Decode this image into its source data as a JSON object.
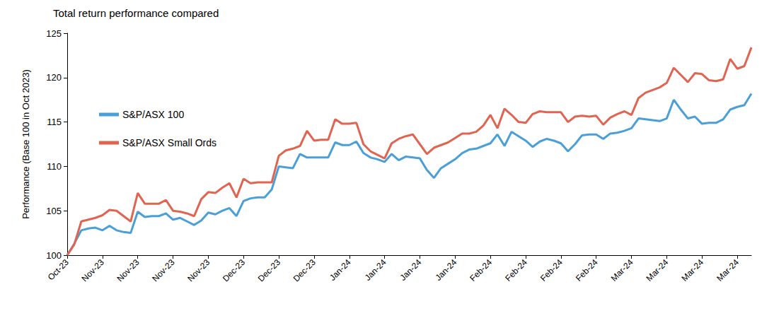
{
  "chart_data": {
    "type": "line",
    "title": "Total return performance compared",
    "y_label": "Performance (Base 100 in Oct 2023)",
    "categories": [
      "Oct-23",
      null,
      null,
      null,
      null,
      "Nov-23",
      null,
      null,
      null,
      null,
      "Nov-23",
      null,
      null,
      null,
      null,
      "Nov-23",
      null,
      null,
      null,
      null,
      "Nov-23",
      null,
      null,
      null,
      null,
      "Dec-23",
      null,
      null,
      null,
      null,
      "Dec-23",
      null,
      null,
      null,
      null,
      "Dec-23",
      null,
      null,
      null,
      null,
      "Jan-24",
      null,
      null,
      null,
      null,
      "Jan-24",
      null,
      null,
      null,
      null,
      "Jan-24",
      null,
      null,
      null,
      null,
      "Jan-24",
      null,
      null,
      null,
      null,
      "Feb-24",
      null,
      null,
      null,
      null,
      "Feb-24",
      null,
      null,
      null,
      null,
      "Feb-24",
      null,
      null,
      null,
      null,
      "Feb-24",
      null,
      null,
      null,
      null,
      "Mar-24",
      null,
      null,
      null,
      null,
      "Mar-24",
      null,
      null,
      null,
      null,
      "Mar-24",
      null,
      null,
      null,
      null,
      "Mar-24",
      null,
      null
    ],
    "series": [
      {
        "name": "S&P/ASX 100",
        "color": "#4a9fd8",
        "values": [
          100.0,
          101.3,
          102.8,
          103.0,
          103.1,
          102.8,
          103.3,
          102.8,
          102.6,
          102.5,
          104.9,
          104.3,
          104.4,
          104.4,
          104.7,
          104.0,
          104.2,
          103.8,
          103.4,
          103.9,
          104.8,
          104.6,
          105.0,
          105.3,
          104.4,
          106.1,
          106.4,
          106.5,
          106.5,
          107.4,
          110.0,
          109.9,
          109.8,
          111.4,
          111.0,
          111.0,
          111.0,
          111.0,
          112.7,
          112.4,
          112.4,
          112.8,
          111.5,
          111.0,
          110.8,
          110.5,
          111.4,
          110.7,
          111.1,
          111.0,
          110.9,
          109.6,
          108.7,
          109.8,
          110.3,
          110.8,
          111.5,
          111.9,
          112.0,
          112.3,
          112.6,
          113.6,
          112.3,
          113.9,
          113.4,
          112.9,
          112.2,
          112.8,
          113.1,
          112.9,
          112.6,
          111.7,
          112.5,
          113.5,
          113.6,
          113.6,
          113.1,
          113.7,
          113.8,
          114.0,
          114.3,
          115.4,
          115.3,
          115.2,
          115.1,
          115.4,
          117.5,
          116.4,
          115.4,
          115.6,
          114.8,
          114.9,
          114.9,
          115.3,
          116.4,
          116.7,
          116.9,
          118.2
        ]
      },
      {
        "name": "S&P/ASX Small Ords",
        "color": "#e06450",
        "values": [
          100.0,
          101.2,
          103.8,
          104.0,
          104.2,
          104.5,
          105.1,
          105.0,
          104.4,
          103.8,
          107.0,
          105.8,
          105.8,
          105.8,
          106.2,
          105.0,
          104.9,
          104.7,
          104.4,
          106.3,
          107.1,
          107.0,
          107.6,
          108.1,
          106.5,
          108.6,
          108.1,
          108.2,
          108.2,
          108.2,
          111.2,
          111.8,
          112.0,
          112.3,
          114.0,
          112.9,
          113.0,
          113.0,
          115.3,
          114.8,
          114.8,
          114.9,
          112.5,
          111.7,
          111.3,
          110.9,
          112.6,
          113.1,
          113.4,
          113.6,
          112.5,
          111.4,
          112.1,
          112.4,
          112.7,
          113.2,
          113.7,
          113.7,
          113.9,
          114.6,
          115.8,
          114.3,
          116.5,
          115.8,
          115.0,
          114.9,
          115.9,
          116.2,
          116.1,
          116.1,
          116.1,
          115.0,
          115.6,
          115.7,
          115.6,
          115.7,
          114.7,
          115.5,
          115.9,
          116.2,
          115.8,
          117.7,
          118.3,
          118.6,
          118.9,
          119.4,
          121.1,
          120.3,
          119.5,
          120.5,
          120.4,
          119.7,
          119.6,
          119.8,
          122.1,
          121.0,
          121.3,
          123.4
        ]
      }
    ],
    "ylim": [
      100,
      125
    ],
    "yticks": [
      100,
      105,
      110,
      115,
      120,
      125
    ],
    "grid": false,
    "legend": "left"
  }
}
